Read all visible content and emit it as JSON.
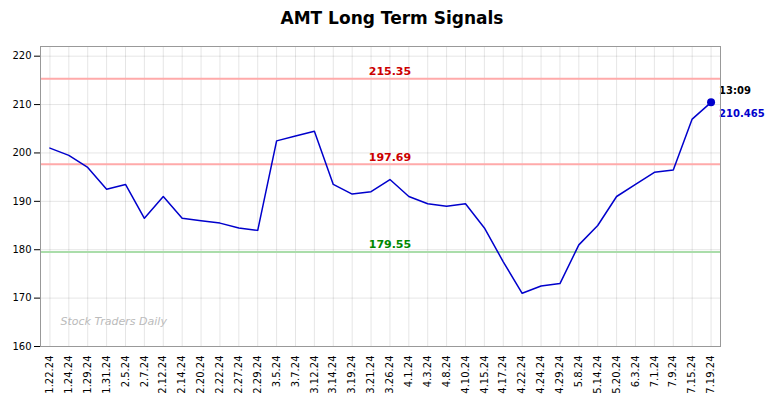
{
  "chart_data": {
    "type": "line",
    "title": "AMT Long Term Signals",
    "categories": [
      "1.22.24",
      "1.24.24",
      "1.29.24",
      "1.31.24",
      "2.5.24",
      "2.7.24",
      "2.12.24",
      "2.14.24",
      "2.20.24",
      "2.22.24",
      "2.27.24",
      "2.29.24",
      "3.5.24",
      "3.7.24",
      "3.12.24",
      "3.14.24",
      "3.19.24",
      "3.21.24",
      "3.26.24",
      "4.1.24",
      "4.3.24",
      "4.8.24",
      "4.10.24",
      "4.15.24",
      "4.17.24",
      "4.22.24",
      "4.24.24",
      "4.29.24",
      "5.8.24",
      "5.14.24",
      "5.20.24",
      "6.3.24",
      "7.1.24",
      "7.9.24",
      "7.15.24",
      "7.19.24"
    ],
    "values": [
      201.0,
      199.5,
      197.0,
      192.5,
      193.5,
      186.5,
      191.0,
      186.5,
      186.0,
      185.5,
      184.5,
      184.0,
      202.5,
      203.5,
      204.5,
      193.5,
      191.5,
      192.0,
      194.5,
      191.0,
      189.5,
      189.0,
      189.5,
      184.5,
      177.5,
      171.0,
      172.5,
      173.0,
      181.0,
      185.0,
      191.0,
      193.5,
      196.0,
      196.5,
      207.0,
      210.465
    ],
    "color": "#0000cc",
    "ylim": [
      160,
      222
    ],
    "yticks": [
      160,
      170,
      180,
      190,
      200,
      210,
      220
    ],
    "grid": true,
    "reference_lines": [
      {
        "value": 215.35,
        "label": "215.35",
        "color": "#ffaaaa",
        "label_color": "#cc0000"
      },
      {
        "value": 197.69,
        "label": "197.69",
        "color": "#ffaaaa",
        "label_color": "#cc0000"
      },
      {
        "value": 179.55,
        "label": "179.55",
        "color": "#aaddaa",
        "label_color": "#008800"
      }
    ],
    "annotations": [
      {
        "x": "7.19.24",
        "y": 210.465,
        "text": "13:09",
        "color": "#000000"
      },
      {
        "x": "7.19.24",
        "y": 210.465,
        "text": "210.465",
        "color": "#0000cc"
      }
    ],
    "watermark": {
      "text": "Stock Traders Daily",
      "color": "#bbbbbb"
    },
    "background_color": "#ffffff"
  }
}
